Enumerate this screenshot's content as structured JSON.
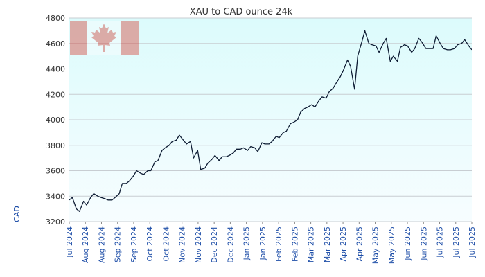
{
  "chart_data": {
    "type": "line",
    "title": "XAU to CAD ounce 24k",
    "xlabel": "",
    "ylabel": "CAD",
    "ylim": [
      3200,
      4800
    ],
    "yticks": [
      3200,
      3400,
      3600,
      3800,
      4000,
      4200,
      4400,
      4600,
      4800
    ],
    "xtick_labels": [
      "Jul 2024",
      "Aug 2024",
      "Aug 2024",
      "Sep 2024",
      "Sep 2024",
      "Oct 2024",
      "Oct 2024",
      "Nov 2024",
      "Nov 2024",
      "Dec 2024",
      "Dec 2024",
      "Jan 2025",
      "Jan 2025",
      "Feb 2025",
      "Feb 2025",
      "Mar 2025",
      "Mar 2025",
      "Apr 2025",
      "Apr 2025",
      "May 2025",
      "May 2025",
      "Jun 2025",
      "Jun 2025",
      "Jul 2025",
      "Jul 2025",
      "Jul 2025"
    ],
    "grid": true,
    "line_color": "#0d1b33",
    "background_top": "#dcfbfc",
    "background_bottom": "#f7fdff",
    "series": [
      {
        "x": [
          "2024-07-01",
          "2024-07-04",
          "2024-07-08",
          "2024-07-11",
          "2024-07-15",
          "2024-07-18",
          "2024-07-22",
          "2024-07-25",
          "2024-07-29",
          "2024-08-01",
          "2024-08-05",
          "2024-08-08",
          "2024-08-12",
          "2024-08-15",
          "2024-08-19",
          "2024-08-22",
          "2024-08-26",
          "2024-08-29",
          "2024-09-02",
          "2024-09-05",
          "2024-09-09",
          "2024-09-12",
          "2024-09-16",
          "2024-09-19",
          "2024-09-23",
          "2024-09-26",
          "2024-09-30",
          "2024-10-03",
          "2024-10-07",
          "2024-10-10",
          "2024-10-14",
          "2024-10-17",
          "2024-10-21",
          "2024-10-24",
          "2024-10-28",
          "2024-10-31",
          "2024-11-04",
          "2024-11-07",
          "2024-11-11",
          "2024-11-14",
          "2024-11-18",
          "2024-11-21",
          "2024-11-25",
          "2024-11-28",
          "2024-12-02",
          "2024-12-05",
          "2024-12-09",
          "2024-12-12",
          "2024-12-16",
          "2024-12-19",
          "2024-12-23",
          "2024-12-26",
          "2024-12-30",
          "2025-01-02",
          "2025-01-06",
          "2025-01-09",
          "2025-01-13",
          "2025-01-16",
          "2025-01-20",
          "2025-01-23",
          "2025-01-27",
          "2025-01-30",
          "2025-02-03",
          "2025-02-06",
          "2025-02-10",
          "2025-02-13",
          "2025-02-17",
          "2025-02-20",
          "2025-02-24",
          "2025-02-27",
          "2025-03-03",
          "2025-03-06",
          "2025-03-10",
          "2025-03-13",
          "2025-03-17",
          "2025-03-20",
          "2025-03-24",
          "2025-03-27",
          "2025-03-31",
          "2025-04-03",
          "2025-04-07",
          "2025-04-10",
          "2025-04-14",
          "2025-04-17",
          "2025-04-21",
          "2025-04-24",
          "2025-04-28",
          "2025-05-01",
          "2025-05-05",
          "2025-05-08",
          "2025-05-12",
          "2025-05-15",
          "2025-05-19",
          "2025-05-22",
          "2025-05-26",
          "2025-05-29",
          "2025-06-02",
          "2025-06-05",
          "2025-06-09",
          "2025-06-12",
          "2025-06-16",
          "2025-06-19",
          "2025-06-23",
          "2025-06-26",
          "2025-06-30",
          "2025-07-03",
          "2025-07-07",
          "2025-07-10",
          "2025-07-14",
          "2025-07-17",
          "2025-07-21",
          "2025-07-24",
          "2025-07-28",
          "2025-07-31"
        ],
        "values": [
          3370,
          3390,
          3300,
          3280,
          3360,
          3330,
          3390,
          3420,
          3400,
          3390,
          3380,
          3370,
          3370,
          3390,
          3420,
          3500,
          3500,
          3520,
          3560,
          3600,
          3580,
          3570,
          3600,
          3600,
          3670,
          3680,
          3760,
          3780,
          3800,
          3830,
          3840,
          3880,
          3840,
          3810,
          3830,
          3700,
          3760,
          3610,
          3620,
          3660,
          3690,
          3720,
          3680,
          3710,
          3710,
          3720,
          3740,
          3770,
          3770,
          3780,
          3760,
          3790,
          3780,
          3750,
          3820,
          3810,
          3810,
          3830,
          3870,
          3860,
          3900,
          3910,
          3970,
          3980,
          4000,
          4060,
          4090,
          4100,
          4120,
          4100,
          4150,
          4180,
          4170,
          4220,
          4250,
          4290,
          4340,
          4390,
          4470,
          4420,
          4240,
          4500,
          4610,
          4700,
          4600,
          4590,
          4580,
          4530,
          4600,
          4640,
          4460,
          4500,
          4460,
          4570,
          4590,
          4580,
          4530,
          4560,
          4640,
          4610,
          4560,
          4560,
          4560,
          4660,
          4600,
          4560,
          4550,
          4550,
          4560,
          4590,
          4600,
          4630,
          4580,
          4550
        ]
      }
    ]
  }
}
